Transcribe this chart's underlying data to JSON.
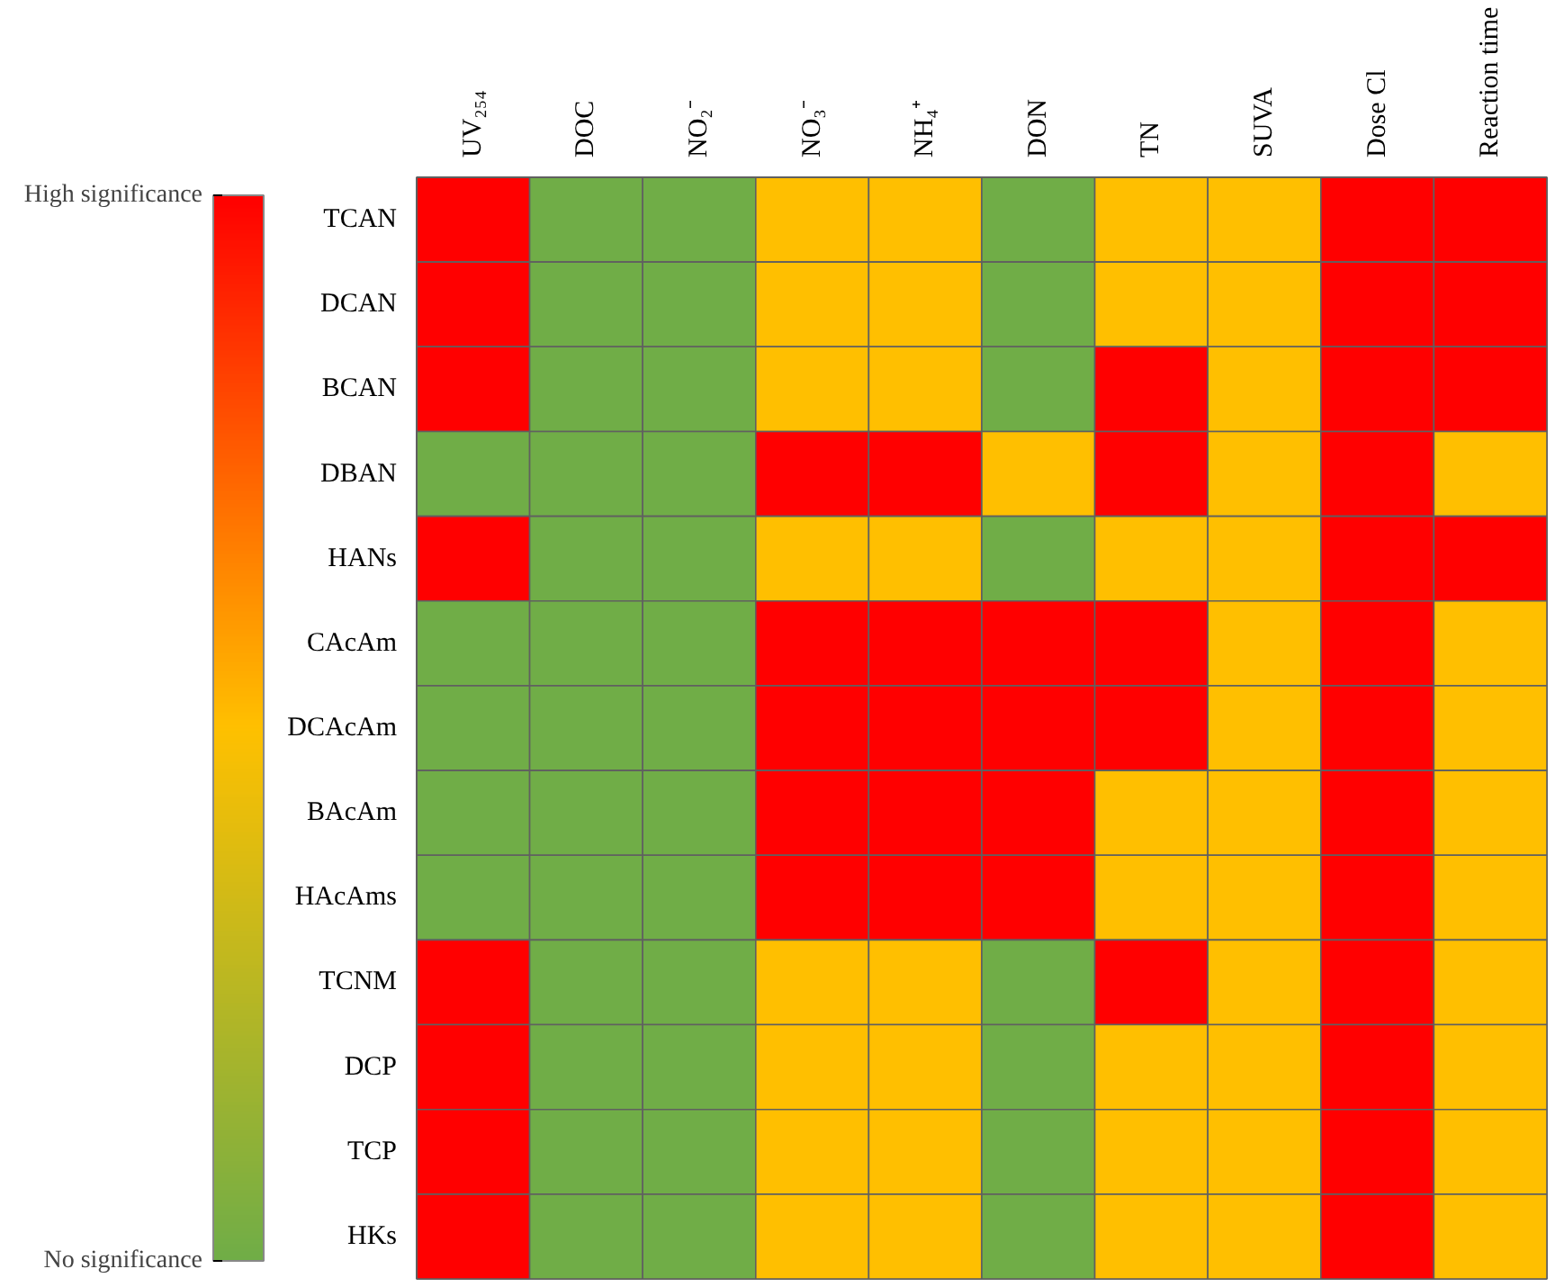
{
  "chart_data": {
    "type": "heatmap",
    "categories": [
      "UV₂₅₄",
      "DOC",
      "NO₂⁻",
      "NO₃⁻",
      "NH₄⁺",
      "DON",
      "TN",
      "SUVA",
      "Dose Cl",
      "Reaction time"
    ],
    "y_categories": [
      "TCAN",
      "DCAN",
      "BCAN",
      "DBAN",
      "HANs",
      "CAcAm",
      "DCAcAm",
      "BAcAm",
      "HAcAms",
      "TCNM",
      "DCP",
      "TCP",
      "HKs"
    ],
    "cells": [
      [
        1,
        0,
        0,
        0.5,
        0.5,
        0,
        0.5,
        0.5,
        1,
        1
      ],
      [
        1,
        0,
        0,
        0.5,
        0.5,
        0,
        0.5,
        0.5,
        1,
        1
      ],
      [
        1,
        0,
        0,
        0.5,
        0.5,
        0,
        1,
        0.5,
        1,
        1
      ],
      [
        0,
        0,
        0,
        1,
        1,
        0.5,
        1,
        0.5,
        1,
        0.5
      ],
      [
        1,
        0,
        0,
        0.5,
        0.5,
        0,
        0.5,
        0.5,
        1,
        1
      ],
      [
        0,
        0,
        0,
        1,
        1,
        1,
        1,
        0.5,
        1,
        0.5
      ],
      [
        0,
        0,
        0,
        1,
        1,
        1,
        1,
        0.5,
        1,
        0.5
      ],
      [
        0,
        0,
        0,
        1,
        1,
        1,
        0.5,
        0.5,
        1,
        0.5
      ],
      [
        0,
        0,
        0,
        1,
        1,
        1,
        0.5,
        0.5,
        1,
        0.5
      ],
      [
        1,
        0,
        0,
        0.5,
        0.5,
        0,
        1,
        0.5,
        1,
        0.5
      ],
      [
        1,
        0,
        0,
        0.5,
        0.5,
        0,
        0.5,
        0.5,
        1,
        0.5
      ],
      [
        1,
        0,
        0,
        0.5,
        0.5,
        0,
        0.5,
        0.5,
        1,
        0.5
      ],
      [
        1,
        0,
        0,
        0.5,
        0.5,
        0,
        0.5,
        0.5,
        1,
        0.5
      ]
    ],
    "colors": [
      "#70ad47",
      "#ffc000",
      "#ff0000"
    ],
    "clim": [
      0,
      1
    ],
    "cticks": [
      {
        "value": 0,
        "label": "No significance"
      },
      {
        "value": 1,
        "label": "High significance"
      }
    ]
  }
}
